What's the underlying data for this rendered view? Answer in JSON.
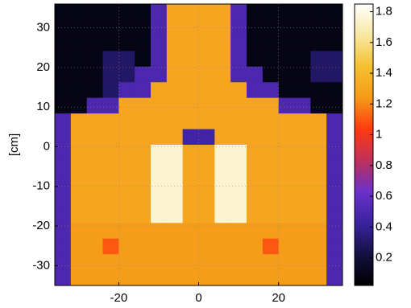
{
  "chart_data": {
    "type": "heatmap",
    "ylabel": "[cm]",
    "xlim": [
      -36,
      36
    ],
    "ylim": [
      -35,
      36
    ],
    "xticks": [
      -20,
      0,
      20
    ],
    "yticks": [
      30,
      20,
      10,
      0,
      -10,
      -20,
      -30
    ],
    "grid": true,
    "zlim": [
      0.02,
      1.85
    ],
    "colorbar_ticks": [
      0.2,
      0.4,
      0.6,
      0.8,
      1,
      1.2,
      1.4,
      1.6,
      1.8
    ],
    "colormap": [
      "#000000",
      "#141040",
      "#3a23a0",
      "#6a30c8",
      "#c0305a",
      "#ff3a10",
      "#f59a18",
      "#f5c030",
      "#f8e8a0",
      "#ffffff"
    ],
    "values": [
      [
        0.08,
        0.08,
        0.08,
        0.08,
        0.08,
        0.08,
        0.5,
        1.3,
        1.3,
        1.3,
        1.3,
        0.5,
        0.08,
        0.08,
        0.08,
        0.08,
        0.08,
        0.08
      ],
      [
        0.08,
        0.08,
        0.08,
        0.08,
        0.08,
        0.08,
        0.5,
        1.3,
        1.3,
        1.3,
        1.3,
        0.5,
        0.08,
        0.08,
        0.08,
        0.08,
        0.08,
        0.08
      ],
      [
        0.08,
        0.08,
        0.08,
        0.08,
        0.08,
        0.08,
        0.5,
        1.3,
        1.3,
        1.3,
        1.3,
        0.5,
        0.08,
        0.08,
        0.08,
        0.08,
        0.08,
        0.08
      ],
      [
        0.08,
        0.08,
        0.08,
        0.3,
        0.3,
        0.08,
        0.5,
        1.3,
        1.3,
        1.3,
        1.3,
        0.5,
        0.08,
        0.08,
        0.08,
        0.08,
        0.3,
        0.3
      ],
      [
        0.08,
        0.08,
        0.08,
        0.3,
        0.3,
        0.5,
        0.5,
        1.3,
        1.3,
        1.3,
        1.3,
        0.5,
        0.5,
        0.08,
        0.08,
        0.08,
        0.3,
        0.3
      ],
      [
        0.08,
        0.08,
        0.08,
        0.3,
        0.5,
        0.5,
        1.3,
        1.3,
        1.3,
        1.3,
        1.3,
        1.3,
        0.5,
        0.5,
        0.08,
        0.08,
        0.08,
        0.08
      ],
      [
        0.08,
        0.08,
        0.5,
        0.5,
        1.3,
        1.3,
        1.3,
        1.3,
        1.3,
        1.3,
        1.3,
        1.3,
        1.3,
        1.3,
        0.5,
        0.5,
        0.08,
        0.08
      ],
      [
        0.5,
        1.3,
        1.3,
        1.3,
        1.3,
        1.3,
        1.3,
        1.3,
        1.3,
        1.3,
        1.3,
        1.3,
        1.3,
        1.3,
        1.3,
        1.3,
        1.3,
        0.5
      ],
      [
        0.5,
        1.3,
        1.3,
        1.3,
        1.3,
        1.3,
        1.3,
        1.3,
        0.45,
        0.45,
        1.3,
        1.3,
        1.3,
        1.3,
        1.3,
        1.3,
        1.3,
        0.5
      ],
      [
        0.5,
        1.3,
        1.3,
        1.3,
        1.3,
        1.3,
        1.75,
        1.75,
        1.3,
        1.3,
        1.75,
        1.75,
        1.3,
        1.3,
        1.3,
        1.3,
        1.3,
        0.5
      ],
      [
        0.5,
        1.3,
        1.3,
        1.3,
        1.3,
        1.3,
        1.75,
        1.75,
        1.3,
        1.3,
        1.75,
        1.75,
        1.3,
        1.3,
        1.3,
        1.3,
        1.3,
        0.5
      ],
      [
        0.5,
        1.3,
        1.3,
        1.3,
        1.3,
        1.3,
        1.75,
        1.75,
        1.3,
        1.3,
        1.75,
        1.75,
        1.3,
        1.3,
        1.3,
        1.3,
        1.3,
        0.5
      ],
      [
        0.5,
        1.3,
        1.3,
        1.3,
        1.3,
        1.3,
        1.75,
        1.75,
        1.3,
        1.3,
        1.75,
        1.75,
        1.3,
        1.3,
        1.3,
        1.3,
        1.3,
        0.5
      ],
      [
        0.5,
        1.3,
        1.3,
        1.3,
        1.3,
        1.3,
        1.75,
        1.75,
        1.3,
        1.3,
        1.75,
        1.75,
        1.3,
        1.3,
        1.3,
        1.3,
        1.3,
        0.5
      ],
      [
        0.5,
        1.25,
        1.25,
        1.25,
        1.25,
        1.25,
        1.25,
        1.25,
        1.25,
        1.25,
        1.25,
        1.25,
        1.25,
        1.25,
        1.25,
        1.25,
        1.25,
        0.5
      ],
      [
        0.5,
        1.25,
        1.25,
        1.1,
        1.25,
        1.25,
        1.25,
        1.25,
        1.25,
        1.25,
        1.25,
        1.25,
        1.25,
        1.1,
        1.25,
        1.25,
        1.25,
        0.5
      ],
      [
        0.5,
        1.25,
        1.25,
        1.25,
        1.25,
        1.25,
        1.25,
        1.25,
        1.25,
        1.25,
        1.25,
        1.25,
        1.25,
        1.25,
        1.25,
        1.25,
        1.25,
        0.5
      ],
      [
        0.5,
        1.25,
        1.25,
        1.25,
        1.25,
        1.25,
        1.25,
        1.25,
        1.25,
        1.25,
        1.25,
        1.25,
        1.25,
        1.25,
        1.25,
        1.25,
        1.25,
        0.5
      ]
    ]
  }
}
